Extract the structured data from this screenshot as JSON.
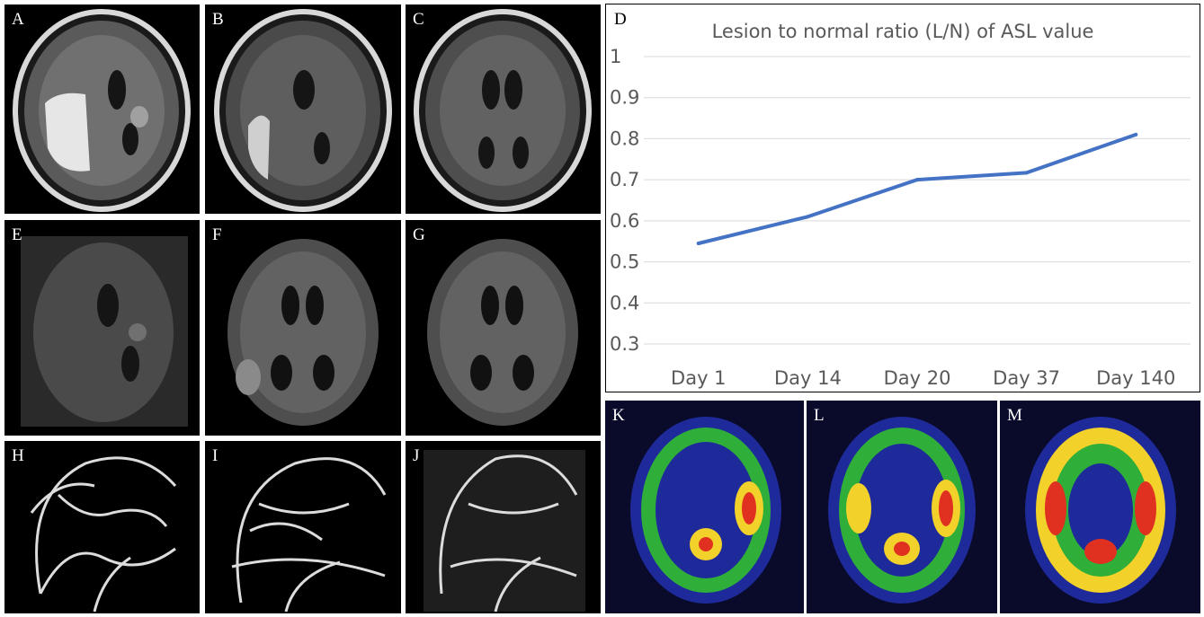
{
  "panels": {
    "A": "A",
    "B": "B",
    "C": "C",
    "E": "E",
    "F": "F",
    "G": "G",
    "H": "H",
    "I": "I",
    "J": "J",
    "K": "K",
    "L": "L",
    "M": "M"
  },
  "chart_panel_label": "D",
  "chart_data": {
    "type": "line",
    "title": "Lesion to normal ratio (L/N) of ASL value",
    "categories": [
      "Day 1",
      "Day 14",
      "Day 20",
      "Day 37",
      "Day 140"
    ],
    "series": [
      {
        "values": [
          0.545,
          0.61,
          0.7,
          0.717,
          0.81
        ],
        "color": "#4472C4"
      }
    ],
    "y_ticks": [
      "0.3",
      "0.4",
      "0.5",
      "0.6",
      "0.7",
      "0.8",
      "0.9",
      "1"
    ],
    "ylim": [
      0.3,
      1.0
    ],
    "grid": true,
    "xlabel": "",
    "ylabel": ""
  },
  "colors": {
    "line": "#4472C4",
    "grid": "#d9d9d9",
    "axis_text": "#595959"
  }
}
